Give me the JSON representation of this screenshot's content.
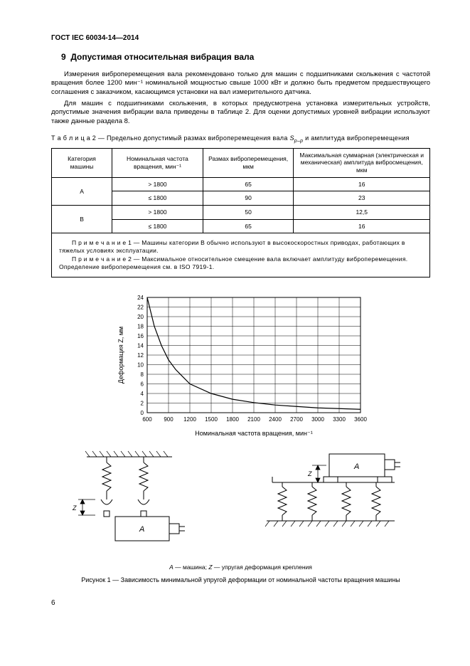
{
  "document": {
    "id": "ГОСТ IEC 60034-14—2014",
    "page_number": "6"
  },
  "section": {
    "number": "9",
    "title": "Допустимая относительная вибрация вала"
  },
  "paragraphs": {
    "p1": "Измерения виброперемещения вала рекомендовано только для машин с подшипниками скольжения с частотой вращения более 1200 мин⁻¹ номинальной мощностью свыше 1000 кВт и должно быть предметом предшествующего соглашения с заказчиком, касающимся установки на вал измерительного датчика.",
    "p2": "Для машин с подшипниками скольжения, в которых предусмотрена установка измерительных устройств, допустимые значения вибрации вала приведены в таблице 2. Для оценки допустимых уровней вибрации используют также данные раздела 8."
  },
  "table": {
    "caption_prefix": "Т а б л и ц а  2 — ",
    "caption_text": "Предельно допустимый размах виброперемещения вала ",
    "caption_symbol": "S",
    "caption_sub": "p–p",
    "caption_suffix": " и амплитуда виброперемещения",
    "headers": {
      "c1": "Категория машины",
      "c2": "Номинальная частота вращения, мин⁻¹",
      "c3": "Размах виброперемещения, мкм",
      "c4": "Максимальная суммарная (электрическая и механическая) амплитуда вибросмещения, мкм"
    },
    "rows": [
      {
        "cat": "A",
        "freq": "> 1800",
        "range": "65",
        "amp": "16"
      },
      {
        "cat": "",
        "freq": "≤ 1800",
        "range": "90",
        "amp": "23"
      },
      {
        "cat": "B",
        "freq": "> 1800",
        "range": "50",
        "amp": "12,5"
      },
      {
        "cat": "",
        "freq": "≤ 1800",
        "range": "65",
        "amp": "16"
      }
    ],
    "note1": "П р и м е ч а н и е  1 — Машины категории B обычно используют в высокоскоростных приводах, работающих в тяжелых условиях эксплуатации.",
    "note2": "П р и м е ч а н и е  2 — Максимальное относительное смещение вала включает амплитуду виброперемещения. Определение виброперемещения см. в ISO 7919-1."
  },
  "chart": {
    "type": "line",
    "xlabel": "Номинальная частота вращения, мин⁻¹",
    "ylabel": "Деформация Z, мм",
    "xlim": [
      600,
      3600
    ],
    "ylim": [
      0,
      24
    ],
    "xtick_step": 300,
    "ytick_step": 2,
    "xticks": [
      "600",
      "900",
      "1200",
      "1500",
      "1800",
      "2100",
      "2400",
      "2700",
      "3000",
      "3300",
      "3600"
    ],
    "yticks": [
      "0",
      "2",
      "4",
      "6",
      "8",
      "10",
      "12",
      "14",
      "16",
      "18",
      "20",
      "22",
      "24"
    ],
    "line_color": "#000000",
    "grid_color": "#000000",
    "background_color": "#ffffff",
    "label_fontsize": 9,
    "tick_fontsize": 8,
    "line_width": 1.2,
    "grid_line_width": 0.5,
    "points": [
      {
        "x": 600,
        "y": 24
      },
      {
        "x": 700,
        "y": 18
      },
      {
        "x": 800,
        "y": 14
      },
      {
        "x": 900,
        "y": 11
      },
      {
        "x": 1000,
        "y": 9
      },
      {
        "x": 1200,
        "y": 6
      },
      {
        "x": 1500,
        "y": 4
      },
      {
        "x": 1800,
        "y": 2.8
      },
      {
        "x": 2100,
        "y": 2.1
      },
      {
        "x": 2400,
        "y": 1.6
      },
      {
        "x": 2700,
        "y": 1.3
      },
      {
        "x": 3000,
        "y": 1.0
      },
      {
        "x": 3300,
        "y": 0.85
      },
      {
        "x": 3600,
        "y": 0.7
      }
    ]
  },
  "diagrams": {
    "label_A": "A",
    "label_Z": "Z"
  },
  "legend": {
    "text_a": "A",
    "text_a_desc": " — машина; ",
    "text_z": "Z",
    "text_z_desc": " — упругая деформация крепления"
  },
  "figure_caption": "Рисунок 1 — Зависимость минимальной упругой деформации от номинальной частоты вращения машины"
}
